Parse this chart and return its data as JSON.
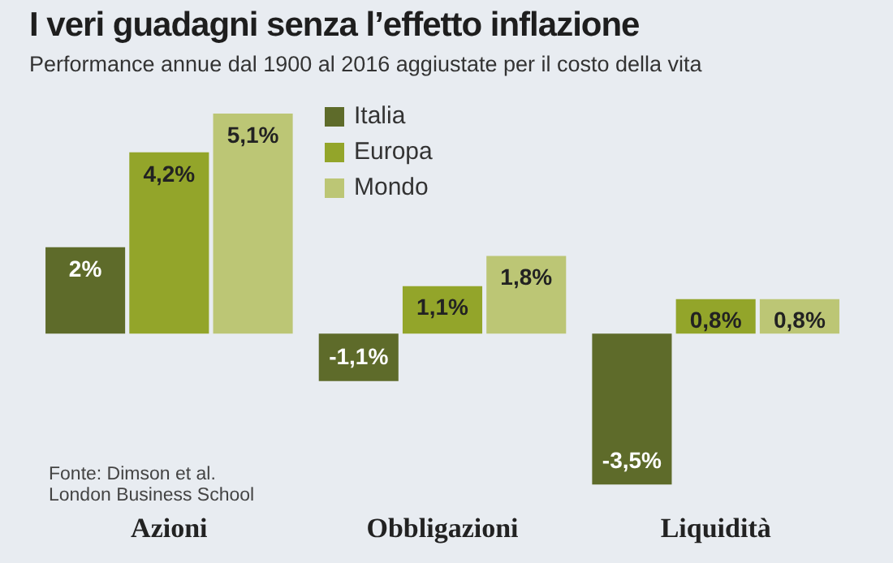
{
  "chart_data": {
    "type": "bar",
    "title": "I veri guadagni senza l’effetto inflazione",
    "subtitle": "Performance annue dal 1900 al 2016 aggiustate per il costo della vita",
    "categories": [
      "Azioni",
      "Obbligazioni",
      "Liquidità"
    ],
    "series": [
      {
        "name": "Italia",
        "color": "#5e6b2a",
        "values": [
          2,
          -1.1,
          -3.5
        ],
        "value_labels": [
          "2%",
          "-1,1%",
          "-3,5%"
        ]
      },
      {
        "name": "Europa",
        "color": "#93a52a",
        "values": [
          4.2,
          1.1,
          0.8
        ],
        "value_labels": [
          "4,2%",
          "1,1%",
          "0,8%"
        ]
      },
      {
        "name": "Mondo",
        "color": "#bcc675",
        "values": [
          5.1,
          1.8,
          0.8
        ],
        "value_labels": [
          "5,1%",
          "1,8%",
          "0,8%"
        ]
      }
    ],
    "legend": "top",
    "grid": false,
    "annotations": [
      "Fonte: Dimson et al.\nLondon Business School"
    ]
  }
}
